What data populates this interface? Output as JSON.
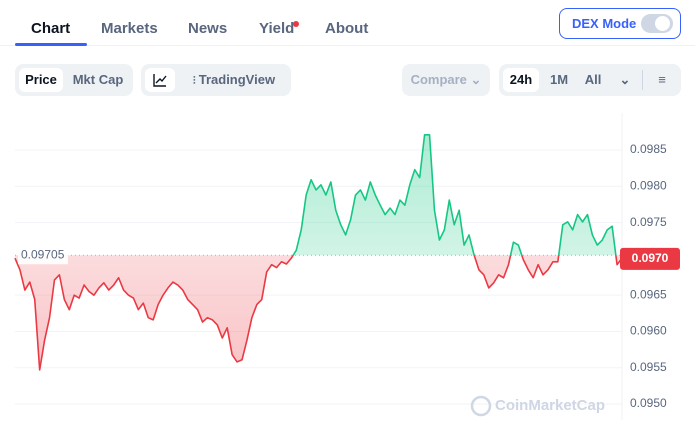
{
  "tabs": [
    "Chart",
    "Markets",
    "News",
    "Yield",
    "About"
  ],
  "dex_mode": "DEX Mode",
  "toolbar": {
    "price_toggle": [
      "Price",
      "Mkt Cap"
    ],
    "tradingview": "TradingView",
    "compare": "Compare",
    "ranges": [
      "24h",
      "1M",
      "All"
    ]
  },
  "chart_data": {
    "type": "line",
    "watermark": "CoinMarketCap",
    "up_color": "#16c784",
    "down_color": "#ea3943",
    "baseline": 0.09705,
    "current": {
      "value": 0.097,
      "label": "0.0970"
    },
    "ylim": [
      0.09478,
      0.09901
    ],
    "yticks": [
      0.0985,
      {
        "value": 0.098,
        "label": "0.0980"
      },
      0.0975,
      0.0965,
      {
        "value": 0.096,
        "label": "0.0960"
      },
      0.0955,
      {
        "value": 0.095,
        "label": "0.0950"
      }
    ],
    "grid": true,
    "values": [
      0.09701,
      0.09685,
      0.09657,
      0.09668,
      0.09644,
      0.09547,
      0.09588,
      0.09619,
      0.09671,
      0.09678,
      0.09644,
      0.0963,
      0.0965,
      0.09646,
      0.09664,
      0.09655,
      0.0965,
      0.0966,
      0.09667,
      0.09657,
      0.09664,
      0.09674,
      0.09657,
      0.0965,
      0.09646,
      0.0963,
      0.09639,
      0.09619,
      0.09616,
      0.09637,
      0.0965,
      0.0966,
      0.09668,
      0.09664,
      0.09657,
      0.09644,
      0.09637,
      0.0963,
      0.09613,
      0.09619,
      0.09616,
      0.09609,
      0.09591,
      0.09605,
      0.09568,
      0.09558,
      0.09561,
      0.09588,
      0.09619,
      0.09637,
      0.09644,
      0.09682,
      0.09692,
      0.09688,
      0.09696,
      0.09693,
      0.09701,
      0.09712,
      0.0974,
      0.09788,
      0.09809,
      0.09795,
      0.09802,
      0.09788,
      0.09806,
      0.09767,
      0.09747,
      0.09733,
      0.09754,
      0.09788,
      0.09795,
      0.09781,
      0.09806,
      0.09788,
      0.09774,
      0.09761,
      0.0977,
      0.09761,
      0.09781,
      0.09774,
      0.09802,
      0.09823,
      0.09812,
      0.09871,
      0.09871,
      0.09767,
      0.09726,
      0.0974,
      0.09781,
      0.09747,
      0.09767,
      0.09719,
      0.09733,
      0.09706,
      0.09685,
      0.09678,
      0.0966,
      0.09667,
      0.09678,
      0.09674,
      0.09692,
      0.09723,
      0.09719,
      0.09699,
      0.09685,
      0.09674,
      0.09692,
      0.09678,
      0.09685,
      0.09696,
      0.09696,
      0.09747,
      0.09751,
      0.0974,
      0.09761,
      0.09751,
      0.09761,
      0.09733,
      0.09719,
      0.09726,
      0.0974,
      0.09745,
      0.09692,
      0.09701
    ]
  }
}
